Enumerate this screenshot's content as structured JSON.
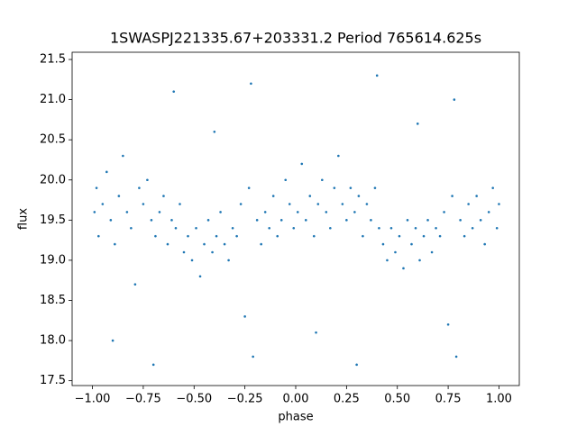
{
  "chart_data": {
    "type": "scatter",
    "title": "1SWASPJ221335.67+203331.2 Period 765614.625s",
    "x_label": "phase",
    "y_label": "flux",
    "color": "#1f77b4",
    "x": [
      -0.99,
      -0.98,
      -0.97,
      -0.95,
      -0.93,
      -0.91,
      -0.89,
      -0.87,
      -0.85,
      -0.83,
      -0.81,
      -0.79,
      -0.77,
      -0.75,
      -0.73,
      -0.71,
      -0.69,
      -0.67,
      -0.65,
      -0.63,
      -0.61,
      -0.59,
      -0.57,
      -0.55,
      -0.53,
      -0.51,
      -0.49,
      -0.47,
      -0.45,
      -0.43,
      -0.41,
      -0.39,
      -0.37,
      -0.35,
      -0.33,
      -0.31,
      -0.29,
      -0.27,
      -0.25,
      -0.23,
      -0.22,
      -0.21,
      -0.19,
      -0.17,
      -0.15,
      -0.13,
      -0.11,
      -0.09,
      -0.07,
      -0.05,
      -0.03,
      -0.01,
      0.01,
      0.03,
      0.05,
      0.07,
      0.09,
      0.11,
      0.13,
      0.15,
      0.17,
      0.19,
      0.21,
      0.23,
      0.25,
      0.27,
      0.29,
      0.31,
      0.33,
      0.35,
      0.37,
      0.39,
      0.41,
      0.43,
      0.45,
      0.47,
      0.49,
      0.51,
      0.53,
      0.55,
      0.57,
      0.59,
      0.61,
      0.63,
      0.65,
      0.67,
      0.69,
      0.71,
      0.73,
      0.75,
      0.77,
      0.78,
      0.79,
      0.81,
      0.83,
      0.85,
      0.87,
      0.89,
      0.91,
      0.93,
      0.95,
      0.97,
      0.99,
      1.0,
      -0.6,
      0.4,
      -0.9,
      0.1,
      -0.4,
      0.6,
      -0.7,
      0.3
    ],
    "y": [
      19.6,
      19.9,
      19.3,
      19.7,
      20.1,
      19.5,
      19.2,
      19.8,
      20.3,
      19.6,
      19.4,
      18.7,
      19.9,
      19.7,
      20.0,
      19.5,
      19.3,
      19.6,
      19.8,
      19.2,
      19.5,
      19.4,
      19.7,
      19.1,
      19.3,
      19.0,
      19.4,
      18.8,
      19.2,
      19.5,
      19.1,
      19.3,
      19.6,
      19.2,
      19.0,
      19.4,
      19.3,
      19.7,
      18.3,
      19.9,
      21.2,
      17.8,
      19.5,
      19.2,
      19.6,
      19.4,
      19.8,
      19.3,
      19.5,
      20.0,
      19.7,
      19.4,
      19.6,
      20.2,
      19.5,
      19.8,
      19.3,
      19.7,
      20.0,
      19.6,
      19.4,
      19.9,
      20.3,
      19.7,
      19.5,
      19.9,
      19.6,
      19.8,
      19.3,
      19.7,
      19.5,
      19.9,
      19.4,
      19.2,
      19.0,
      19.4,
      19.1,
      19.3,
      18.9,
      19.5,
      19.2,
      19.4,
      19.0,
      19.3,
      19.5,
      19.1,
      19.4,
      19.3,
      19.6,
      18.2,
      19.8,
      21.0,
      17.8,
      19.5,
      19.3,
      19.7,
      19.4,
      19.8,
      19.5,
      19.2,
      19.6,
      19.9,
      19.4,
      19.7,
      21.1,
      21.3,
      18.0,
      18.1,
      20.6,
      20.7,
      17.7,
      17.7
    ],
    "xlim": [
      -1.1,
      1.1
    ],
    "ylim": [
      17.44,
      21.59
    ],
    "xticks": [
      {
        "value": -1,
        "label": "−1.00"
      },
      {
        "value": -0.75,
        "label": "−0.75"
      },
      {
        "value": -0.5,
        "label": "−0.50"
      },
      {
        "value": -0.25,
        "label": "−0.25"
      },
      {
        "value": 0,
        "label": "0.00"
      },
      {
        "value": 0.25,
        "label": "0.25"
      },
      {
        "value": 0.5,
        "label": "0.50"
      },
      {
        "value": 0.75,
        "label": "0.75"
      },
      {
        "value": 1,
        "label": "1.00"
      }
    ],
    "yticks": [
      17.5,
      {
        "value": 18,
        "label": "18.0"
      },
      18.5,
      {
        "value": 19,
        "label": "19.0"
      },
      19.5,
      {
        "value": 20,
        "label": "20.0"
      },
      20.5,
      {
        "value": 21,
        "label": "21.0"
      },
      21.5
    ]
  }
}
